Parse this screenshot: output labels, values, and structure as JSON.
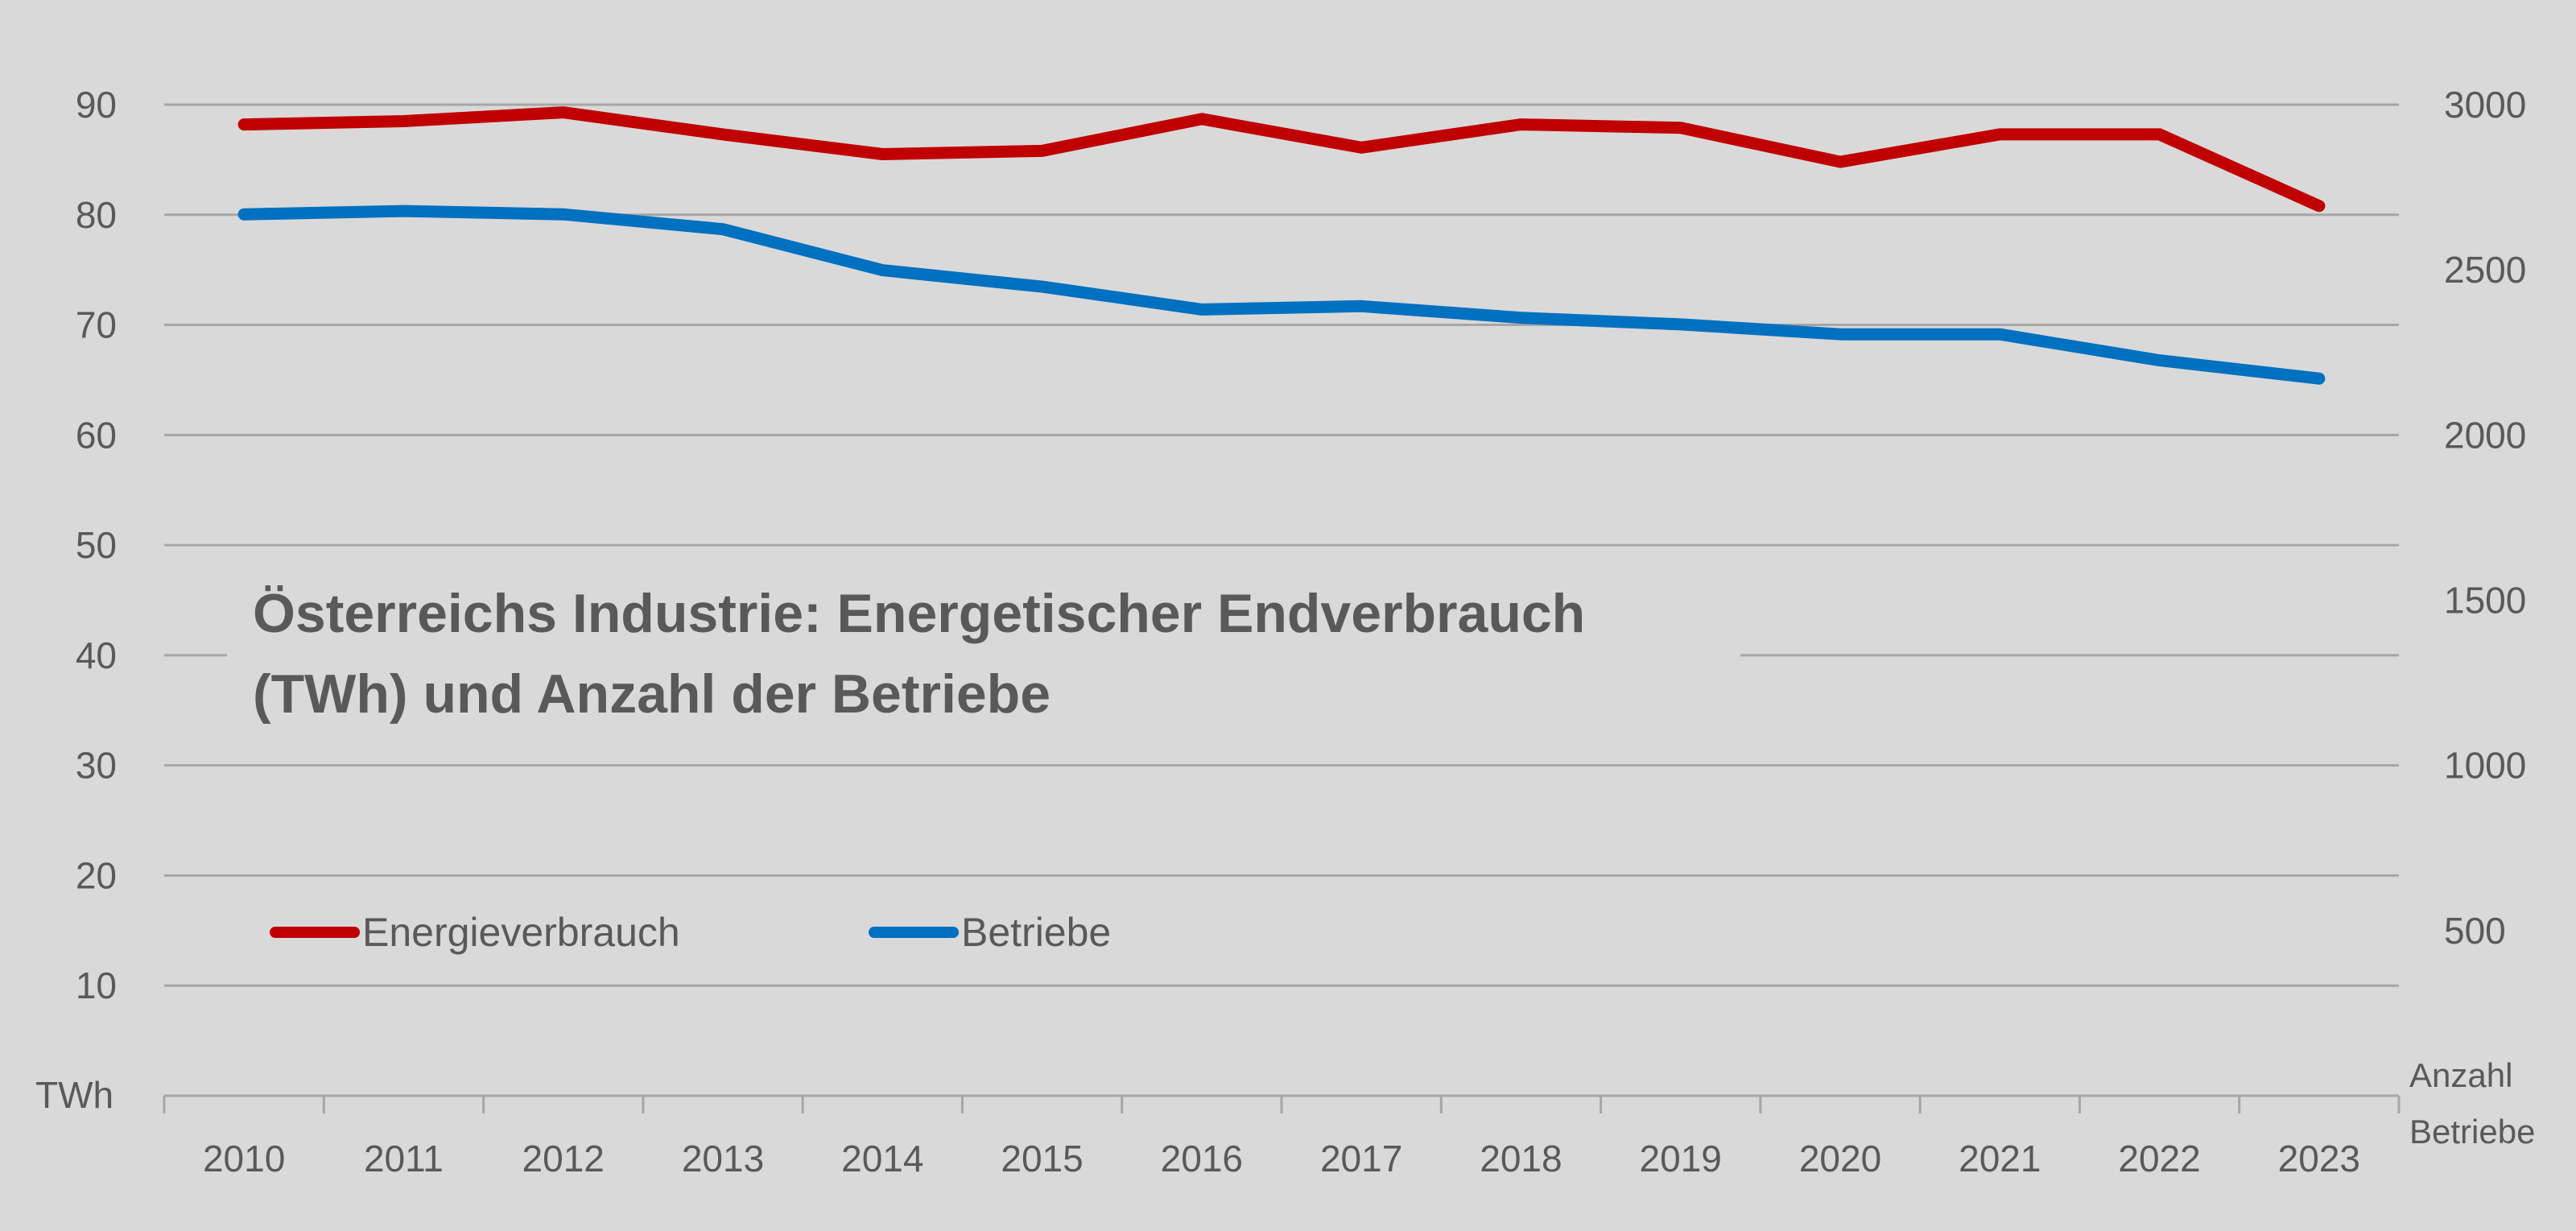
{
  "chart_data": {
    "type": "line",
    "title_lines": [
      "Österreichs Industrie: Energetischer Endverbrauch",
      "(TWh) und Anzahl der Betriebe"
    ],
    "categories": [
      "2010",
      "2011",
      "2012",
      "2013",
      "2014",
      "2015",
      "2016",
      "2017",
      "2018",
      "2019",
      "2020",
      "2021",
      "2022",
      "2023"
    ],
    "y_left": {
      "label": "TWh",
      "ylim": [
        0,
        90
      ],
      "ticks": [
        10,
        20,
        30,
        40,
        50,
        60,
        70,
        80,
        90
      ]
    },
    "y_right": {
      "label_lines": [
        "Anzahl",
        "Betriebe"
      ],
      "ylim": [
        0,
        3000
      ],
      "ticks": [
        500,
        1000,
        1500,
        2000,
        2500,
        3000
      ]
    },
    "grid": true,
    "legend_placement": "inside-lower-left",
    "series": [
      {
        "name": "Energieverbrauch",
        "axis": "left",
        "color": "#c00000",
        "values": [
          88.2,
          88.5,
          89.3,
          87.3,
          85.5,
          85.8,
          88.7,
          86.1,
          88.2,
          87.9,
          84.8,
          87.3,
          87.3,
          80.8
        ]
      },
      {
        "name": "Betriebe",
        "axis": "right",
        "color": "#0070c0",
        "values": [
          2668,
          2678,
          2668,
          2623,
          2499,
          2449,
          2380,
          2390,
          2355,
          2335,
          2305,
          2305,
          2226,
          2171
        ]
      }
    ]
  }
}
